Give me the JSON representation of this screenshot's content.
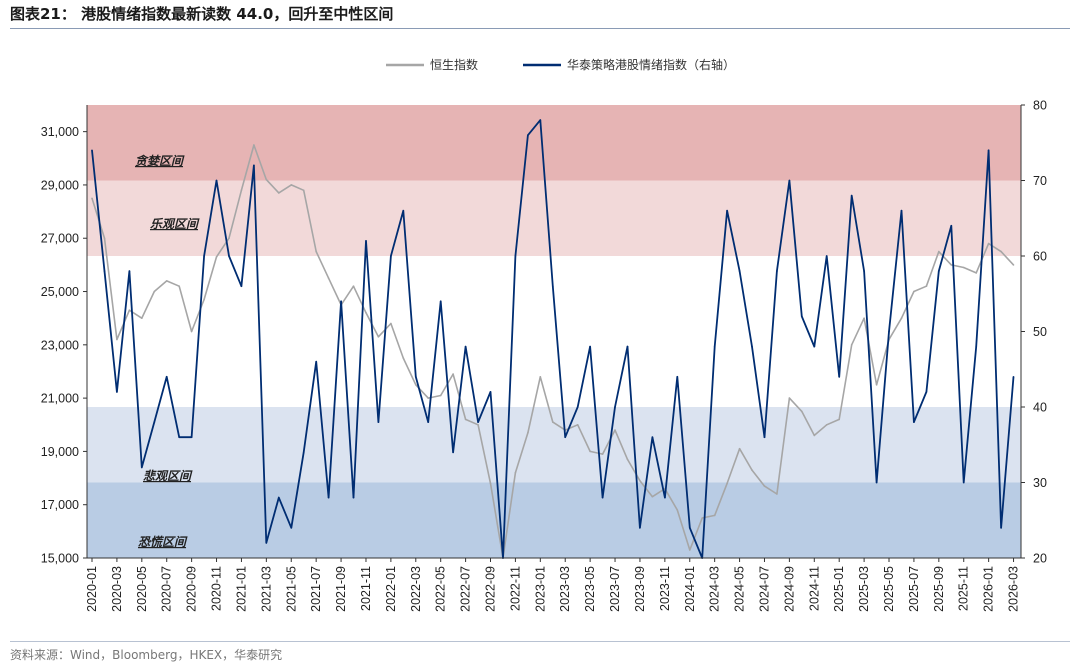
{
  "title": "图表21： 港股情绪指数最新读数 44.0，回升至中性区间",
  "source": "资料来源：Wind，Bloomberg，HKEX，华泰研究",
  "colors": {
    "hsi": "#a6a6a6",
    "sentiment": "#002d72",
    "greed": "#e6b4b4",
    "optimism": "#f2d9d9",
    "pessimism": "#dbe3f0",
    "fear": "#b9cce4"
  },
  "chart_data": {
    "type": "line",
    "left_axis": {
      "min": 15000,
      "max": 32000,
      "ticks": [
        "15,000",
        "17,000",
        "19,000",
        "21,000",
        "23,000",
        "25,000",
        "27,000",
        "29,000",
        "31,000"
      ]
    },
    "right_axis": {
      "min": 20,
      "max": 80,
      "ticks": [
        "20",
        "30",
        "40",
        "50",
        "60",
        "70",
        "80"
      ]
    },
    "x_ticks": [
      "2020-01",
      "2020-03",
      "2020-05",
      "2020-07",
      "2020-09",
      "2020-11",
      "2021-01",
      "2021-03",
      "2021-05",
      "2021-07",
      "2021-09",
      "2021-11",
      "2022-01",
      "2022-03",
      "2022-05",
      "2022-07",
      "2022-09",
      "2022-11",
      "2023-01",
      "2023-03",
      "2023-05",
      "2023-07",
      "2023-09",
      "2023-11",
      "2024-01",
      "2024-03",
      "2024-05",
      "2024-07",
      "2024-09",
      "2024-11",
      "2025-01",
      "2025-03",
      "2025-05",
      "2025-07",
      "2025-09",
      "2025-11",
      "2026-01",
      "2026-03"
    ],
    "zones": [
      {
        "label": "贪婪区间",
        "from": 70,
        "to": 80
      },
      {
        "label": "乐观区间",
        "from": 60,
        "to": 70
      },
      {
        "label": "悲观区间",
        "from": 30,
        "to": 40
      },
      {
        "label": "恐慌区间",
        "from": 20,
        "to": 30
      }
    ],
    "series": [
      {
        "name": "恒生指数",
        "axis": "left",
        "x": [
          "2020-01",
          "2020-02",
          "2020-03",
          "2020-04",
          "2020-05",
          "2020-06",
          "2020-07",
          "2020-08",
          "2020-09",
          "2020-10",
          "2020-11",
          "2020-12",
          "2021-01",
          "2021-02",
          "2021-03",
          "2021-04",
          "2021-05",
          "2021-06",
          "2021-07",
          "2021-08",
          "2021-09",
          "2021-10",
          "2021-11",
          "2021-12",
          "2022-01",
          "2022-02",
          "2022-03",
          "2022-04",
          "2022-05",
          "2022-06",
          "2022-07",
          "2022-08",
          "2022-09",
          "2022-10",
          "2022-11",
          "2022-12",
          "2023-01",
          "2023-02",
          "2023-03",
          "2023-04",
          "2023-05",
          "2023-06",
          "2023-07",
          "2023-08",
          "2023-09",
          "2023-10",
          "2023-11",
          "2023-12",
          "2024-01",
          "2024-02",
          "2024-03",
          "2024-04",
          "2024-05",
          "2024-06",
          "2024-07",
          "2024-08",
          "2024-09",
          "2024-10",
          "2024-11",
          "2024-12",
          "2025-01",
          "2025-02",
          "2025-03",
          "2025-04",
          "2025-05",
          "2025-06",
          "2025-07",
          "2025-08",
          "2025-09",
          "2025-10",
          "2025-11",
          "2025-12",
          "2026-01",
          "2026-02",
          "2026-03"
        ],
        "values": [
          28500,
          27000,
          23200,
          24300,
          24000,
          25000,
          25400,
          25200,
          23500,
          24700,
          26300,
          27000,
          28800,
          30500,
          29200,
          28700,
          29000,
          28800,
          26500,
          25500,
          24500,
          25200,
          24200,
          23300,
          23800,
          22500,
          21500,
          21000,
          21100,
          21900,
          20200,
          20000,
          17800,
          15000,
          18200,
          19700,
          21800,
          20100,
          19800,
          20000,
          19000,
          18900,
          19800,
          18700,
          17900,
          17300,
          17600,
          16800,
          15300,
          16500,
          16600,
          17800,
          19100,
          18300,
          17700,
          17400,
          21000,
          20500,
          19600,
          20000,
          20200,
          23000,
          24000,
          21500,
          23200,
          24000,
          25000,
          25200,
          26500,
          26000,
          25900,
          25700,
          26800,
          26500,
          26000
        ]
      },
      {
        "name": "华泰策略港股情绪指数（右轴）",
        "axis": "right",
        "x": [
          "2020-01",
          "2020-02",
          "2020-03",
          "2020-04",
          "2020-05",
          "2020-06",
          "2020-07",
          "2020-08",
          "2020-09",
          "2020-10",
          "2020-11",
          "2020-12",
          "2021-01",
          "2021-02",
          "2021-03",
          "2021-04",
          "2021-05",
          "2021-06",
          "2021-07",
          "2021-08",
          "2021-09",
          "2021-10",
          "2021-11",
          "2021-12",
          "2022-01",
          "2022-02",
          "2022-03",
          "2022-04",
          "2022-05",
          "2022-06",
          "2022-07",
          "2022-08",
          "2022-09",
          "2022-10",
          "2022-11",
          "2022-12",
          "2023-01",
          "2023-02",
          "2023-03",
          "2023-04",
          "2023-05",
          "2023-06",
          "2023-07",
          "2023-08",
          "2023-09",
          "2023-10",
          "2023-11",
          "2023-12",
          "2024-01",
          "2024-02",
          "2024-03",
          "2024-04",
          "2024-05",
          "2024-06",
          "2024-07",
          "2024-08",
          "2024-09",
          "2024-10",
          "2024-11",
          "2024-12",
          "2025-01",
          "2025-02",
          "2025-03",
          "2025-04",
          "2025-05",
          "2025-06",
          "2025-07",
          "2025-08",
          "2025-09",
          "2025-10",
          "2025-11",
          "2025-12",
          "2026-01",
          "2026-02",
          "2026-03"
        ],
        "values": [
          74,
          58,
          42,
          58,
          32,
          38,
          44,
          36,
          36,
          60,
          70,
          60,
          56,
          72,
          22,
          28,
          24,
          34,
          46,
          28,
          54,
          28,
          62,
          38,
          60,
          66,
          44,
          38,
          54,
          34,
          48,
          38,
          42,
          20,
          60,
          76,
          78,
          56,
          36,
          40,
          48,
          28,
          40,
          48,
          24,
          36,
          28,
          44,
          24,
          20,
          48,
          66,
          58,
          48,
          36,
          58,
          70,
          52,
          48,
          60,
          44,
          68,
          58,
          30,
          50,
          66,
          38,
          42,
          58,
          64,
          30,
          48,
          74,
          24,
          44
        ]
      }
    ]
  }
}
